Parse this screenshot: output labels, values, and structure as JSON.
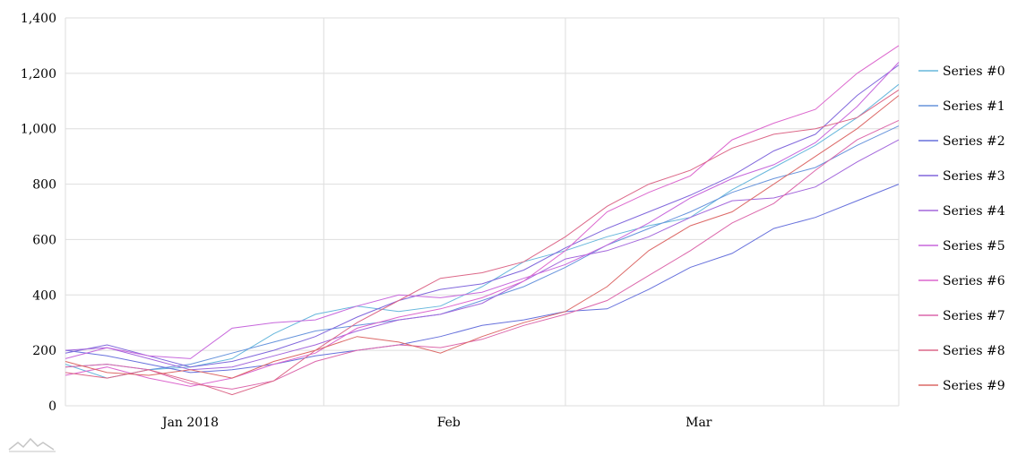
{
  "chart_data": {
    "type": "line",
    "ylim": [
      0,
      1400
    ],
    "y_ticks": [
      0,
      200,
      400,
      600,
      800,
      1000,
      1200,
      1400
    ],
    "y_tick_labels": [
      "0",
      "200",
      "400",
      "600",
      "800",
      "1,000",
      "1,200",
      "1,400"
    ],
    "x_range": [
      0,
      100
    ],
    "x_ticks": [
      {
        "x": 15,
        "label": "Jan 2018"
      },
      {
        "x": 46,
        "label": "Feb"
      },
      {
        "x": 76,
        "label": "Mar"
      }
    ],
    "x_gridlines": [
      31,
      60,
      91
    ],
    "grid": true,
    "legend_position": "right",
    "x": [
      0,
      5,
      10,
      15,
      20,
      25,
      30,
      35,
      40,
      45,
      50,
      55,
      60,
      65,
      70,
      75,
      80,
      85,
      90,
      95,
      100
    ],
    "series": [
      {
        "name": "Series #0",
        "color": "#67b7dc",
        "values": [
          150,
          100,
          130,
          140,
          170,
          260,
          330,
          360,
          340,
          360,
          430,
          520,
          560,
          610,
          650,
          680,
          780,
          860,
          940,
          1040,
          1160
        ]
      },
      {
        "name": "Series #1",
        "color": "#6794dc",
        "values": [
          140,
          150,
          130,
          150,
          190,
          230,
          270,
          290,
          310,
          330,
          380,
          430,
          500,
          580,
          640,
          700,
          770,
          820,
          860,
          940,
          1010
        ]
      },
      {
        "name": "Series #2",
        "color": "#6771dc",
        "values": [
          200,
          180,
          150,
          120,
          130,
          150,
          180,
          200,
          220,
          250,
          290,
          310,
          340,
          350,
          420,
          500,
          550,
          640,
          680,
          740,
          800
        ]
      },
      {
        "name": "Series #3",
        "color": "#8067dc",
        "values": [
          190,
          220,
          180,
          140,
          160,
          200,
          250,
          320,
          380,
          420,
          440,
          490,
          570,
          640,
          700,
          760,
          830,
          920,
          980,
          1120,
          1230
        ]
      },
      {
        "name": "Series #4",
        "color": "#a367dc",
        "values": [
          200,
          210,
          170,
          130,
          140,
          180,
          220,
          270,
          310,
          330,
          370,
          450,
          530,
          560,
          610,
          680,
          740,
          750,
          790,
          880,
          960
        ]
      },
      {
        "name": "Series #5",
        "color": "#c767dc",
        "values": [
          170,
          210,
          180,
          170,
          280,
          300,
          310,
          360,
          400,
          390,
          410,
          460,
          510,
          580,
          660,
          750,
          820,
          870,
          950,
          1080,
          1240
        ]
      },
      {
        "name": "Series #6",
        "color": "#dc67ce",
        "values": [
          110,
          140,
          100,
          70,
          100,
          150,
          190,
          280,
          320,
          350,
          390,
          450,
          560,
          700,
          770,
          830,
          960,
          1020,
          1070,
          1200,
          1300
        ]
      },
      {
        "name": "Series #7",
        "color": "#dc67ab",
        "values": [
          140,
          150,
          130,
          80,
          60,
          90,
          160,
          200,
          220,
          210,
          240,
          290,
          330,
          380,
          470,
          560,
          660,
          730,
          850,
          960,
          1030
        ]
      },
      {
        "name": "Series #8",
        "color": "#dc6788",
        "values": [
          120,
          100,
          130,
          90,
          40,
          90,
          200,
          300,
          380,
          460,
          480,
          520,
          610,
          720,
          800,
          850,
          930,
          980,
          1000,
          1040,
          1140
        ]
      },
      {
        "name": "Series #9",
        "color": "#dc6967",
        "values": [
          160,
          120,
          110,
          130,
          100,
          160,
          200,
          250,
          230,
          190,
          250,
          300,
          340,
          430,
          560,
          650,
          700,
          800,
          900,
          1000,
          1120
        ]
      }
    ]
  }
}
